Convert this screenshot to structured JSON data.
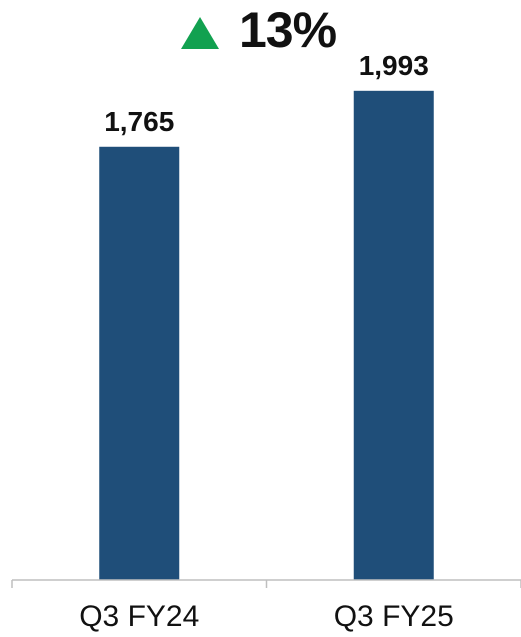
{
  "chart_data": {
    "type": "bar",
    "categories": [
      "Q3 FY24",
      "Q3 FY25"
    ],
    "values": [
      1765,
      1993
    ],
    "value_labels": [
      "1,765",
      "1,993"
    ],
    "title": "",
    "xlabel": "",
    "ylabel": "",
    "ylim": [
      0,
      2200
    ],
    "grid": false,
    "legend": "none",
    "colors": {
      "bar": "#1f4e79",
      "axis": "#bfbfbf",
      "growth_arrow": "#12a150",
      "text": "#111111"
    }
  },
  "growth": {
    "direction": "up",
    "label": "13%",
    "icon": "triangle-up-icon"
  }
}
